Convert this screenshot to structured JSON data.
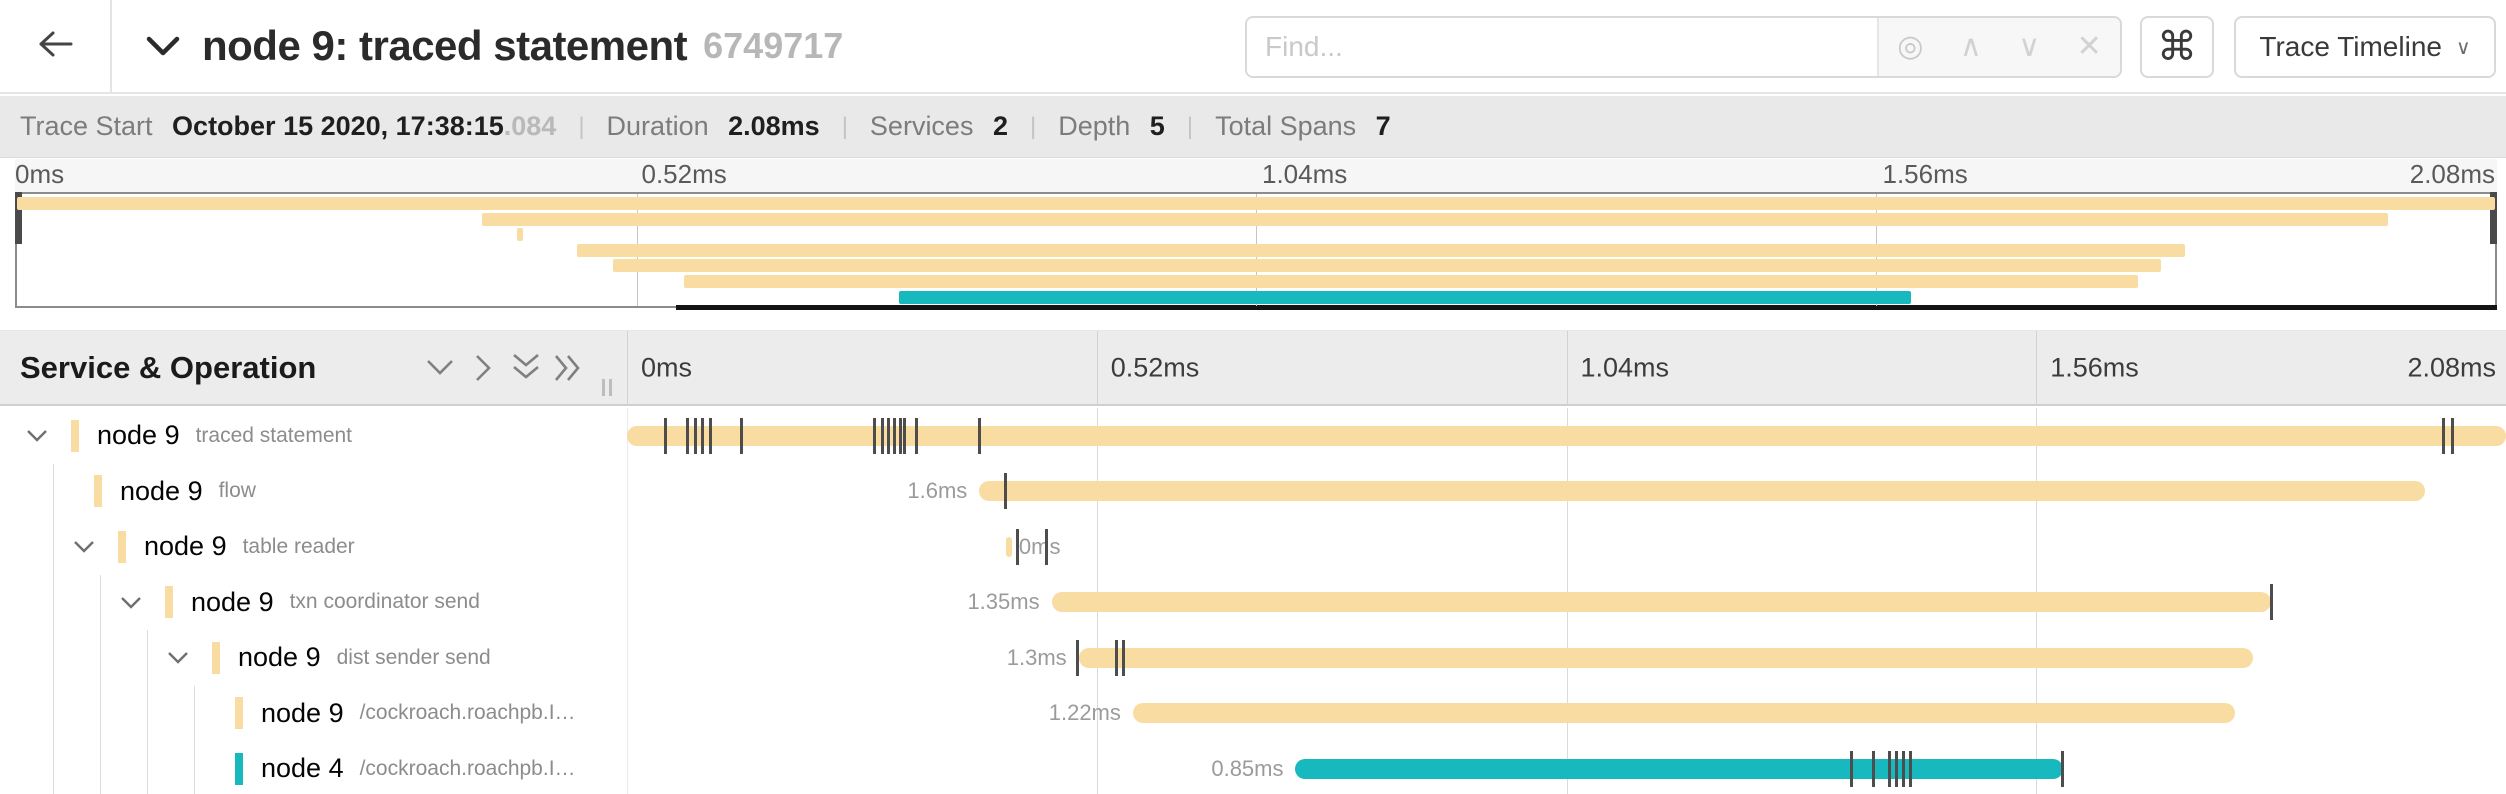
{
  "header": {
    "title": "node 9: traced statement",
    "trace_id": "6749717",
    "find": {
      "placeholder": "Find...",
      "target_icon": "◎",
      "prev_icon": "∧",
      "next_icon": "∨",
      "clear_icon": "✕"
    },
    "shortcut_icon": "⌘",
    "view_select": {
      "label": "Trace Timeline",
      "chevron": "∨"
    }
  },
  "summary": {
    "items": [
      {
        "label": "Trace Start",
        "value": "October 15 2020, 17:38:15",
        "suffix": ".084"
      },
      {
        "label": "Duration",
        "value": "2.08ms"
      },
      {
        "label": "Services",
        "value": "2"
      },
      {
        "label": "Depth",
        "value": "5"
      },
      {
        "label": "Total Spans",
        "value": "7"
      }
    ]
  },
  "timeline": {
    "duration_ms": 2.08,
    "axis_ticks": [
      "0ms",
      "0.52ms",
      "1.04ms",
      "1.56ms",
      "2.08ms"
    ],
    "left_header": "Service & Operation"
  },
  "colors": {
    "tan": "#F8DCA1",
    "teal": "#17B8BE"
  },
  "spans": [
    {
      "service": "node 9",
      "operation": "traced statement",
      "depth": 0,
      "has_children": true,
      "color": "tan",
      "start_ms": 0,
      "end_ms": 2.08,
      "duration_label": "",
      "label_side": "none",
      "log_ticks_ms": [
        0.042,
        0.066,
        0.075,
        0.083,
        0.092,
        0.126,
        0.273,
        0.282,
        0.289,
        0.296,
        0.302,
        0.307,
        0.32,
        0.39,
        2.01,
        2.02
      ]
    },
    {
      "service": "node 9",
      "operation": "flow",
      "depth": 1,
      "has_children": false,
      "color": "tan",
      "start_ms": 0.39,
      "end_ms": 1.99,
      "duration_label": "1.6ms",
      "label_side": "left",
      "log_ticks_ms": [
        0.418
      ]
    },
    {
      "service": "node 9",
      "operation": "table reader",
      "depth": 1,
      "has_children": true,
      "color": "tan",
      "start_ms": 0.42,
      "end_ms": 0.425,
      "duration_label": "0ms",
      "label_side": "right",
      "log_ticks_ms": [
        0.432,
        0.464
      ]
    },
    {
      "service": "node 9",
      "operation": "txn coordinator send",
      "depth": 2,
      "has_children": true,
      "color": "tan",
      "start_ms": 0.47,
      "end_ms": 1.82,
      "duration_label": "1.35ms",
      "label_side": "left",
      "log_ticks_ms": [
        1.82
      ]
    },
    {
      "service": "node 9",
      "operation": "dist sender send",
      "depth": 3,
      "has_children": true,
      "color": "tan",
      "start_ms": 0.5,
      "end_ms": 1.8,
      "duration_label": "1.3ms",
      "label_side": "left",
      "log_ticks_ms": [
        0.498,
        0.541,
        0.549
      ]
    },
    {
      "service": "node 9",
      "operation": "/cockroach.roachpb.I…",
      "depth": 4,
      "has_children": false,
      "color": "tan",
      "start_ms": 0.56,
      "end_ms": 1.78,
      "duration_label": "1.22ms",
      "label_side": "left",
      "log_ticks_ms": []
    },
    {
      "service": "node 4",
      "operation": "/cockroach.roachpb.I…",
      "depth": 4,
      "has_children": false,
      "color": "teal",
      "start_ms": 0.74,
      "end_ms": 1.59,
      "duration_label": "0.85ms",
      "label_side": "left",
      "log_ticks_ms": [
        1.355,
        1.379,
        1.397,
        1.405,
        1.412,
        1.42,
        1.588
      ]
    }
  ]
}
